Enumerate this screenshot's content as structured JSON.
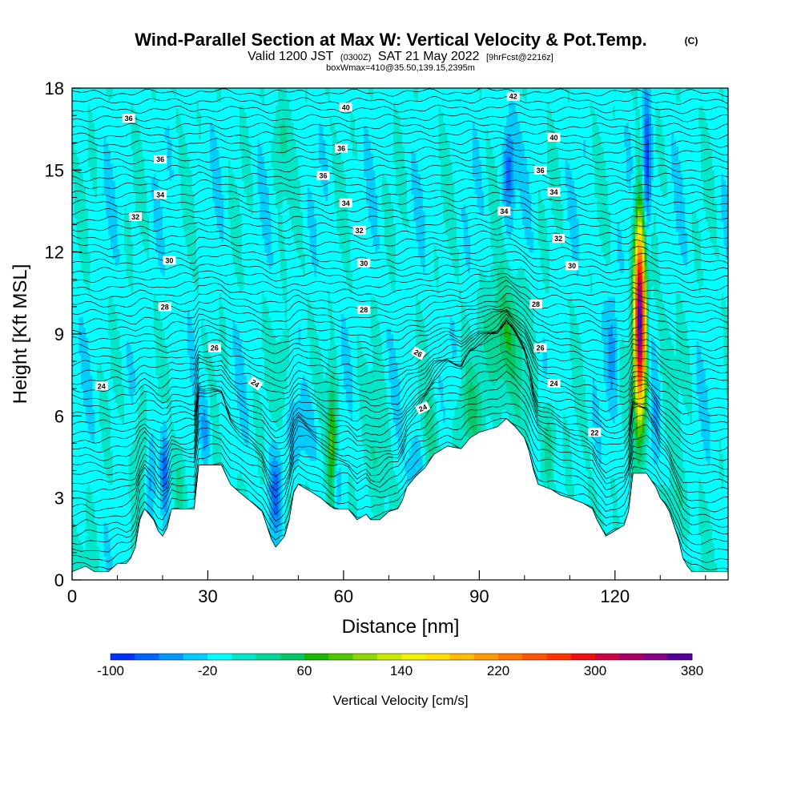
{
  "header": {
    "title": "Wind-Parallel Section at Max W: Vertical Velocity & Pot.Temp.",
    "title_suffix": "(C)",
    "subtitle_a": "Valid 1200 JST",
    "subtitle_b": "(0300Z)",
    "subtitle_c": "SAT 21 May 2022",
    "subtitle_d": "[9hrFcst@2216z]",
    "subtitle2": "boxWmax=410@35.50,139.15,2395m"
  },
  "chart_data": {
    "type": "heatmap",
    "xlabel": "Distance [nm]",
    "ylabel": "Height [Kft MSL]",
    "xlim": [
      0,
      145
    ],
    "ylim": [
      0,
      18
    ],
    "xticks": [
      0,
      30,
      60,
      90,
      120
    ],
    "yticks": [
      0,
      3,
      6,
      9,
      12,
      15,
      18
    ],
    "colorbar": {
      "label": "Vertical Velocity [cm/s]",
      "tick_labels": [
        "-100",
        "-20",
        "60",
        "140",
        "220",
        "300",
        "380"
      ],
      "min": -100,
      "max": 380,
      "step": 20,
      "colors": [
        "#0000ff",
        "#0033ff",
        "#0066ff",
        "#0099ff",
        "#00ccff",
        "#00ffff",
        "#00e6c8",
        "#00d899",
        "#00c868",
        "#18b800",
        "#50c800",
        "#8cd800",
        "#c8e800",
        "#f0f000",
        "#ffdd00",
        "#ffbb00",
        "#ff9900",
        "#ff7700",
        "#ff5500",
        "#ff3300",
        "#ee1111",
        "#cc0044",
        "#aa0066",
        "#880088",
        "#550099"
      ]
    },
    "terrain": [
      [
        0,
        0.3
      ],
      [
        3,
        0.5
      ],
      [
        5,
        0.3
      ],
      [
        8,
        0.3
      ],
      [
        10,
        0.6
      ],
      [
        12,
        0.6
      ],
      [
        13,
        0.8
      ],
      [
        14,
        1.2
      ],
      [
        15,
        2.2
      ],
      [
        16,
        2.6
      ],
      [
        18,
        2.2
      ],
      [
        19,
        1.8
      ],
      [
        20,
        1.6
      ],
      [
        21,
        1.9
      ],
      [
        22,
        2.6
      ],
      [
        24,
        2.6
      ],
      [
        27,
        2.6
      ],
      [
        28,
        4.2
      ],
      [
        30,
        4.2
      ],
      [
        33,
        4.2
      ],
      [
        35,
        3.5
      ],
      [
        37,
        3.2
      ],
      [
        40,
        2.8
      ],
      [
        42,
        2.5
      ],
      [
        43,
        2.0
      ],
      [
        44,
        1.5
      ],
      [
        45,
        1.2
      ],
      [
        47,
        1.6
      ],
      [
        48,
        2.2
      ],
      [
        49,
        3.2
      ],
      [
        50,
        3.5
      ],
      [
        53,
        3.2
      ],
      [
        55,
        3.0
      ],
      [
        57,
        2.7
      ],
      [
        58,
        2.6
      ],
      [
        60,
        2.6
      ],
      [
        61,
        2.6
      ],
      [
        62,
        2.4
      ],
      [
        63,
        2.2
      ],
      [
        65,
        2.4
      ],
      [
        66,
        2.2
      ],
      [
        68,
        2.2
      ],
      [
        70,
        2.5
      ],
      [
        72,
        2.6
      ],
      [
        73,
        2.9
      ],
      [
        74,
        3.4
      ],
      [
        76,
        3.8
      ],
      [
        78,
        4.1
      ],
      [
        80,
        4.6
      ],
      [
        83,
        4.9
      ],
      [
        86,
        4.8
      ],
      [
        88,
        5.2
      ],
      [
        90,
        5.4
      ],
      [
        92,
        5.5
      ],
      [
        94,
        5.6
      ],
      [
        96,
        5.9
      ],
      [
        98,
        5.6
      ],
      [
        100,
        5.2
      ],
      [
        101,
        4.7
      ],
      [
        102,
        4.0
      ],
      [
        103,
        3.5
      ],
      [
        106,
        3.3
      ],
      [
        108,
        3.1
      ],
      [
        110,
        3.0
      ],
      [
        113,
        2.8
      ],
      [
        115,
        2.6
      ],
      [
        116,
        2.2
      ],
      [
        117,
        1.9
      ],
      [
        118,
        1.6
      ],
      [
        120,
        1.8
      ],
      [
        122,
        2.0
      ],
      [
        123,
        2.5
      ],
      [
        124,
        3.9
      ],
      [
        127,
        3.9
      ],
      [
        129,
        3.4
      ],
      [
        130,
        3.0
      ],
      [
        131,
        2.8
      ],
      [
        132,
        2.5
      ],
      [
        133,
        2.0
      ],
      [
        134,
        1.5
      ],
      [
        135,
        0.8
      ],
      [
        136,
        0.5
      ],
      [
        137,
        0.3
      ],
      [
        145,
        0.3
      ]
    ],
    "updrafts": [
      {
        "x": 125.5,
        "y": 9.6,
        "peak": 380,
        "sx": 0.9,
        "sy": 2.6
      },
      {
        "x": 57.5,
        "y": 5.2,
        "peak": 100,
        "sx": 0.8,
        "sy": 1.6
      },
      {
        "x": 95.5,
        "y": 8.8,
        "peak": 70,
        "sx": 2.8,
        "sy": 1.6
      },
      {
        "x": 88.0,
        "y": 6.2,
        "peak": 40,
        "sx": 2.0,
        "sy": 1.0
      },
      {
        "x": 105.5,
        "y": 5.3,
        "peak": 50,
        "sx": 1.0,
        "sy": 1.2
      },
      {
        "x": 15.0,
        "y": 5.0,
        "peak": 40,
        "sx": 1.1,
        "sy": 1.4
      },
      {
        "x": 46.5,
        "y": 7.5,
        "peak": 35,
        "sx": 1.2,
        "sy": 1.2
      },
      {
        "x": 46.0,
        "y": 16.0,
        "peak": 35,
        "sx": 1.2,
        "sy": 1.2
      },
      {
        "x": 68.0,
        "y": 4.8,
        "peak": 30,
        "sx": 1.5,
        "sy": 1.6
      },
      {
        "x": 79.0,
        "y": 5.5,
        "peak": 30,
        "sx": 1.5,
        "sy": 1.0
      },
      {
        "x": 24.0,
        "y": 3.8,
        "peak": 30,
        "sx": 1.0,
        "sy": 1.2
      },
      {
        "x": 134.0,
        "y": 2.8,
        "peak": 25,
        "sx": 2.0,
        "sy": 1.0
      },
      {
        "x": 131.0,
        "y": 7.5,
        "peak": 20,
        "sx": 1.5,
        "sy": 2.0
      }
    ],
    "downdrafts": [
      {
        "x": 127.0,
        "y": 14.8,
        "peak": -100,
        "sx": 0.7,
        "sy": 1.9
      },
      {
        "x": 96.5,
        "y": 15.0,
        "peak": -70,
        "sx": 0.9,
        "sy": 1.3
      },
      {
        "x": 45.0,
        "y": 3.2,
        "peak": -60,
        "sx": 1.1,
        "sy": 1.2
      },
      {
        "x": 58.5,
        "y": 3.3,
        "peak": -40,
        "sx": 0.6,
        "sy": 0.8
      },
      {
        "x": 20.5,
        "y": 4.2,
        "peak": -60,
        "sx": 0.7,
        "sy": 1.3
      },
      {
        "x": 17.5,
        "y": 3.8,
        "peak": -45,
        "sx": 0.7,
        "sy": 1.3
      },
      {
        "x": 29.5,
        "y": 5.6,
        "peak": -45,
        "sx": 0.8,
        "sy": 1.1
      },
      {
        "x": 76.0,
        "y": 4.3,
        "peak": -45,
        "sx": 1.2,
        "sy": 1.0
      },
      {
        "x": 52.0,
        "y": 5.5,
        "peak": -30,
        "sx": 2.0,
        "sy": 1.0
      },
      {
        "x": 119.5,
        "y": 8.7,
        "peak": -35,
        "sx": 0.9,
        "sy": 1.6
      },
      {
        "x": 129.0,
        "y": 5.5,
        "peak": -30,
        "sx": 0.8,
        "sy": 1.5
      }
    ],
    "theta_labels": [
      {
        "text": "24",
        "x": 6.5,
        "y": 7.1
      },
      {
        "text": "24",
        "x": 40.5,
        "y": 7.2,
        "rot": 35
      },
      {
        "text": "24",
        "x": 77.5,
        "y": 6.3,
        "rot": -25
      },
      {
        "text": "24",
        "x": 106.5,
        "y": 7.2
      },
      {
        "text": "22",
        "x": 115.5,
        "y": 5.4
      },
      {
        "text": "26",
        "x": 31.5,
        "y": 8.5
      },
      {
        "text": "26",
        "x": 76.5,
        "y": 8.3,
        "rot": 30
      },
      {
        "text": "26",
        "x": 103.5,
        "y": 8.5
      },
      {
        "text": "28",
        "x": 20.5,
        "y": 10.0
      },
      {
        "text": "28",
        "x": 64.5,
        "y": 9.9
      },
      {
        "text": "28",
        "x": 102.5,
        "y": 10.1
      },
      {
        "text": "30",
        "x": 21.5,
        "y": 11.7
      },
      {
        "text": "30",
        "x": 64.5,
        "y": 11.6
      },
      {
        "text": "30",
        "x": 110.5,
        "y": 11.5
      },
      {
        "text": "32",
        "x": 14.0,
        "y": 13.3
      },
      {
        "text": "32",
        "x": 63.5,
        "y": 12.8
      },
      {
        "text": "32",
        "x": 107.5,
        "y": 12.5
      },
      {
        "text": "34",
        "x": 19.5,
        "y": 14.1
      },
      {
        "text": "34",
        "x": 60.5,
        "y": 13.8
      },
      {
        "text": "34",
        "x": 95.5,
        "y": 13.5
      },
      {
        "text": "34",
        "x": 106.5,
        "y": 14.2
      },
      {
        "text": "36",
        "x": 19.5,
        "y": 15.4
      },
      {
        "text": "36",
        "x": 55.5,
        "y": 14.8
      },
      {
        "text": "36",
        "x": 59.5,
        "y": 15.8
      },
      {
        "text": "36",
        "x": 103.5,
        "y": 15.0
      },
      {
        "text": "36",
        "x": 12.5,
        "y": 16.9
      },
      {
        "text": "40",
        "x": 60.5,
        "y": 17.3
      },
      {
        "text": "40",
        "x": 106.5,
        "y": 16.2
      },
      {
        "text": "42",
        "x": 97.5,
        "y": 17.7
      }
    ]
  }
}
